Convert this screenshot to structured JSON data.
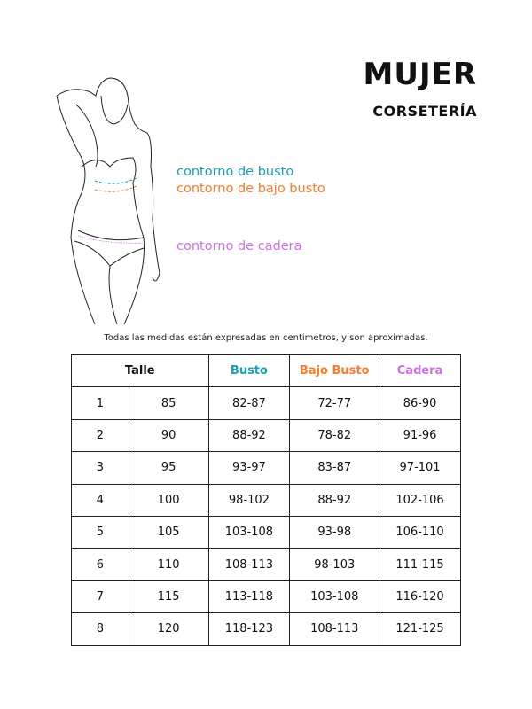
{
  "header": {
    "title": "MUJER",
    "subtitle": "CORSETERÍA"
  },
  "colors": {
    "busto": "#1a9fb8",
    "bajo_busto": "#ff7a2a",
    "cadera": "#d070e8"
  },
  "labels": {
    "busto": "contorno de busto",
    "bajo_busto": "contorno de bajo busto",
    "cadera": "contorno de cadera"
  },
  "note": "Todas las medidas están expresadas en centimetros, y son aproximadas.",
  "table": {
    "headers": [
      "Talle",
      "Busto",
      "Bajo Busto",
      "Cadera"
    ],
    "rows": [
      [
        "1",
        "85",
        "82-87",
        "72-77",
        "86-90"
      ],
      [
        "2",
        "90",
        "88-92",
        "78-82",
        "91-96"
      ],
      [
        "3",
        "95",
        "93-97",
        "83-87",
        "97-101"
      ],
      [
        "4",
        "100",
        "98-102",
        "88-92",
        "102-106"
      ],
      [
        "5",
        "105",
        "103-108",
        "93-98",
        "106-110"
      ],
      [
        "6",
        "110",
        "108-113",
        "98-103",
        "111-115"
      ],
      [
        "7",
        "115",
        "113-118",
        "103-108",
        "116-120"
      ],
      [
        "8",
        "120",
        "118-123",
        "108-113",
        "121-125"
      ]
    ]
  }
}
